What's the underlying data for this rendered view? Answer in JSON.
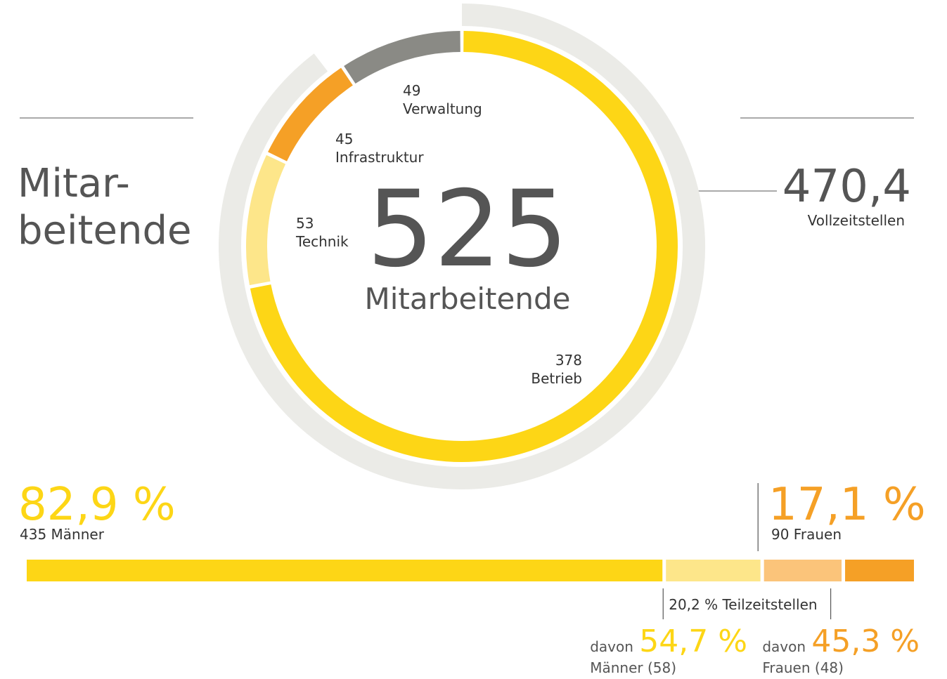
{
  "chart_data": {
    "type": "donut",
    "title": [
      "Mitar-",
      "beitende"
    ],
    "center_value": 525,
    "center_label": "Mitarbeitende",
    "categories": [
      "Betrieb",
      "Technik",
      "Infrastruktur",
      "Verwaltung"
    ],
    "values": [
      378,
      53,
      45,
      49
    ],
    "colors": [
      "#fdd616",
      "#fde68a",
      "#f5a026",
      "#8a8a85"
    ],
    "outer_ring": {
      "value": 470.4,
      "value_label": "470,4",
      "label": "Vollzeitstellen",
      "color": "#ebebe7"
    },
    "gender_bar": {
      "values": [
        377,
        58,
        48,
        42
      ],
      "colors": [
        "#fdd616",
        "#fde68a",
        "#fbc47a",
        "#f5a026"
      ]
    },
    "men": {
      "percent": 82.9,
      "percent_label": "82,9 %",
      "text": "435 Männer",
      "color": "#fdd616"
    },
    "women": {
      "percent": 17.1,
      "percent_label": "17,1 %",
      "text": "90 Frauen",
      "color": "#f5a026"
    },
    "part_time": {
      "percent": 20.2,
      "label": "20,2 % Teilzeitstellen"
    },
    "part_time_men": {
      "prefix": "davon",
      "percent": 54.7,
      "percent_label": "54,7 %",
      "text": "Männer (58)",
      "color": "#fdd616"
    },
    "part_time_women": {
      "prefix": "davon",
      "percent": 45.3,
      "percent_label": "45,3 %",
      "text": "Frauen (48)",
      "color": "#f5a026"
    }
  }
}
